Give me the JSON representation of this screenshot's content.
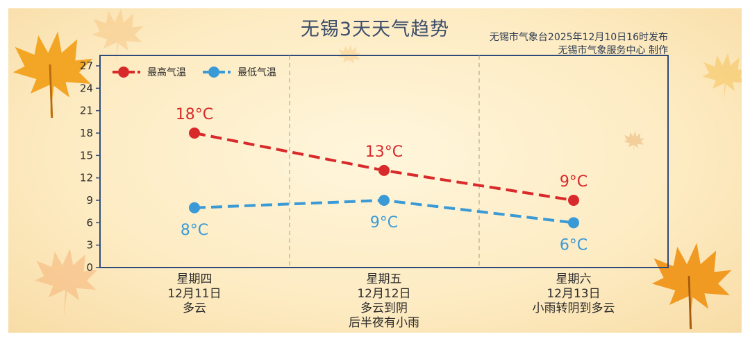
{
  "title": "无锡3天天气趋势",
  "credit_line1": "无锡市气象台2025年12月10日16时发布",
  "credit_line2": "无锡市气象服务中心  制作",
  "colors": {
    "high": "#d82a2a",
    "low": "#3a9ad6",
    "axis": "#2e4a78",
    "title": "#3c4e6a"
  },
  "chart_data": {
    "type": "line",
    "y_ticks": [
      0,
      3,
      6,
      9,
      12,
      15,
      18,
      21,
      24,
      27
    ],
    "ylim": [
      0,
      27
    ],
    "legend_position": "top-left",
    "grid": "vertical dashed separators between days",
    "categories": [
      {
        "weekday": "星期四",
        "date": "12月11日",
        "weather": [
          "多云"
        ]
      },
      {
        "weekday": "星期五",
        "date": "12月12日",
        "weather": [
          "多云到阴",
          "后半夜有小雨"
        ]
      },
      {
        "weekday": "星期六",
        "date": "12月13日",
        "weather": [
          "小雨转阴到多云"
        ]
      }
    ],
    "series": [
      {
        "name": "最高气温",
        "key": "high",
        "values": [
          18,
          13,
          9
        ],
        "labels": [
          "18°C",
          "13°C",
          "9°C"
        ]
      },
      {
        "name": "最低气温",
        "key": "low",
        "values": [
          8,
          9,
          6
        ],
        "labels": [
          "8°C",
          "9°C",
          "6°C"
        ]
      }
    ]
  }
}
